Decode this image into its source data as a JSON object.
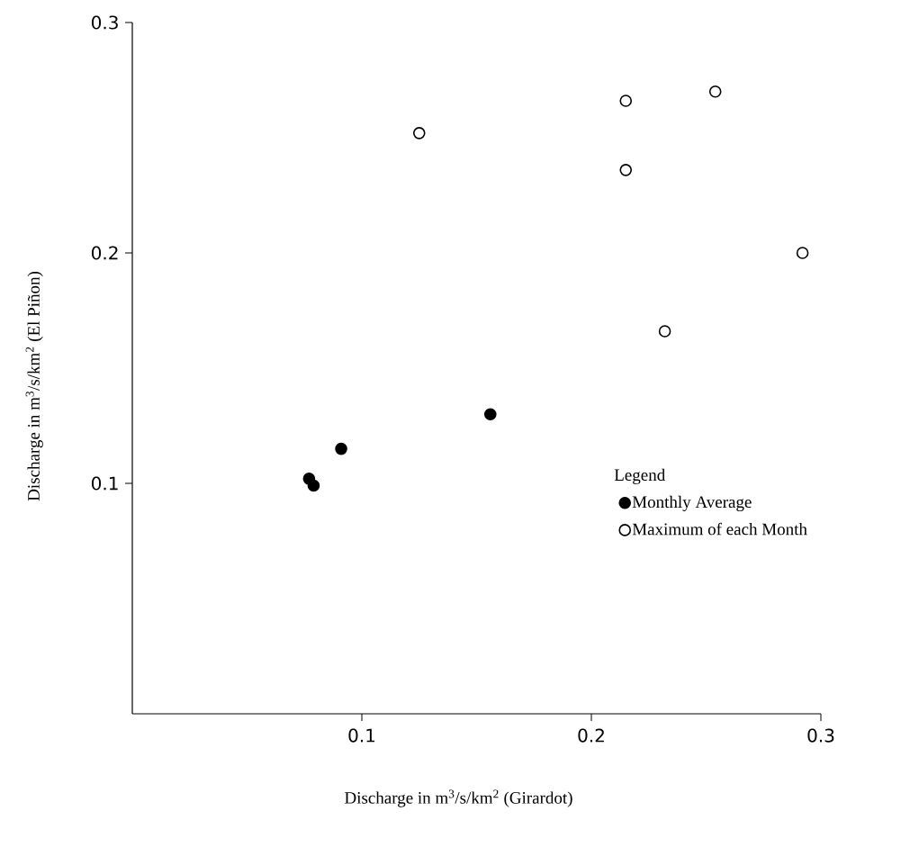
{
  "chart_data": {
    "type": "scatter",
    "xlabel": "Discharge in m$^{3}$/s/km$^{2}$  (Girardot)",
    "ylabel": "Discharge in m$^{3}$/s/km$^{2}$  (El Piñon)",
    "legend_title": "Legend",
    "series": [
      {
        "name": "Monthly Average",
        "color": "#000000",
        "x": [
          0.077,
          0.079,
          0.091,
          0.156
        ],
        "values": [
          0.102,
          0.099,
          0.115,
          0.13
        ]
      },
      {
        "name": "Maximum of each Month",
        "color": "#000000",
        "x": [
          0.125,
          0.215,
          0.254,
          0.215,
          0.292,
          0.232
        ],
        "values": [
          0.252,
          0.266,
          0.27,
          0.236,
          0.2,
          0.166
        ]
      }
    ],
    "xlim": [
      0,
      0.3
    ],
    "ylim": [
      0,
      0.3
    ],
    "xticks": [
      0.1,
      0.2,
      0.3
    ],
    "yticks": [
      0.1,
      0.2,
      0.3
    ],
    "marker": "circle",
    "legend": "right",
    "grid": false
  }
}
